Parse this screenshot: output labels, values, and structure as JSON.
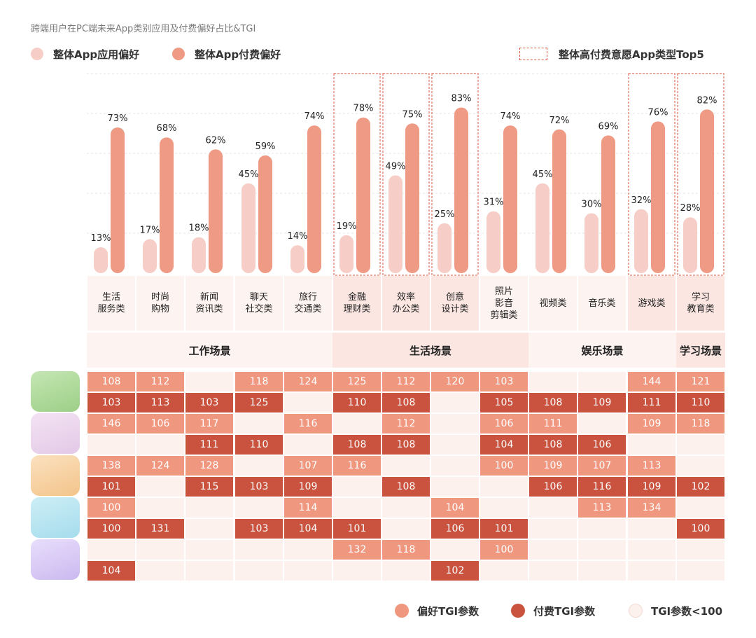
{
  "title": "跨端用户在PC端未来App类别应用及付费偏好占比&TGI",
  "legend": {
    "preference": "整体App应用偏好",
    "payment": "整体App付费偏好",
    "top5": "整体高付费意愿App类型Top5"
  },
  "bottom_legend": {
    "pref_tgi": "偏好TGI参数",
    "pay_tgi": "付费TGI参数",
    "low_tgi": "TGI参数<100"
  },
  "colors": {
    "pref_bar": "#f6cec7",
    "pay_bar": "#ef9a84",
    "pref_tgi": "#f0987f",
    "pay_tgi": "#c9533e",
    "low_tgi": "#fdf1ee",
    "highlight_border": "#d9543f"
  },
  "categories": [
    {
      "label": "生活\n服务类",
      "top5": false
    },
    {
      "label": "时尚\n购物",
      "top5": false
    },
    {
      "label": "新闻\n资讯类",
      "top5": false
    },
    {
      "label": "聊天\n社交类",
      "top5": false
    },
    {
      "label": "旅行\n交通类",
      "top5": false
    },
    {
      "label": "金融\n理财类",
      "top5": true
    },
    {
      "label": "效率\n办公类",
      "top5": true
    },
    {
      "label": "创意\n设计类",
      "top5": true
    },
    {
      "label": "照片\n影音\n剪辑类",
      "top5": false
    },
    {
      "label": "视频类",
      "top5": false
    },
    {
      "label": "音乐类",
      "top5": false
    },
    {
      "label": "游戏类",
      "top5": true
    },
    {
      "label": "学习\n教育类",
      "top5": true
    }
  ],
  "scenes": [
    {
      "label": "工作场景",
      "span": [
        0,
        5
      ]
    },
    {
      "label": "生活场景",
      "span": [
        5,
        8
      ]
    },
    {
      "label": "娱乐场景",
      "span": [
        8,
        12
      ]
    },
    {
      "label": "学习场景",
      "span": [
        12,
        13
      ]
    }
  ],
  "chart_data": {
    "type": "bar",
    "title": "跨端用户在PC端未来App类别应用及付费偏好占比&TGI",
    "categories": [
      "生活服务类",
      "时尚购物",
      "新闻资讯类",
      "聊天社交类",
      "旅行交通类",
      "金融理财类",
      "效率办公类",
      "创意设计类",
      "照片影音剪辑类",
      "视频类",
      "音乐类",
      "游戏类",
      "学习教育类"
    ],
    "series": [
      {
        "name": "整体App应用偏好",
        "values": [
          13,
          17,
          18,
          45,
          14,
          19,
          49,
          25,
          31,
          45,
          30,
          32,
          28
        ],
        "labels": [
          "13%",
          "17%",
          "18%",
          "45%",
          "14%",
          "19%",
          "49%",
          "25%",
          "31%",
          "45%",
          "30%",
          "32%",
          "28%"
        ]
      },
      {
        "name": "整体App付费偏好",
        "values": [
          73,
          68,
          62,
          59,
          74,
          78,
          75,
          83,
          74,
          72,
          69,
          76,
          82
        ],
        "labels": [
          "73%",
          "68%",
          "62%",
          "59%",
          "74%",
          "78%",
          "75%",
          "83%",
          "74%",
          "72%",
          "69%",
          "76%",
          "82%"
        ]
      }
    ],
    "ylim": [
      0,
      100
    ],
    "unit": "%",
    "tgi_groups": [
      {
        "pref": [
          108,
          112,
          null,
          118,
          124,
          125,
          112,
          120,
          103,
          null,
          null,
          144,
          121
        ],
        "pay": [
          103,
          113,
          103,
          125,
          null,
          110,
          108,
          null,
          105,
          108,
          109,
          111,
          110
        ]
      },
      {
        "pref": [
          146,
          106,
          117,
          null,
          116,
          null,
          112,
          null,
          106,
          111,
          null,
          109,
          118
        ],
        "pay": [
          null,
          null,
          111,
          110,
          null,
          108,
          108,
          null,
          104,
          108,
          106,
          null,
          null
        ]
      },
      {
        "pref": [
          138,
          124,
          128,
          null,
          107,
          116,
          null,
          null,
          100,
          109,
          107,
          113,
          null
        ],
        "pay": [
          101,
          null,
          115,
          103,
          109,
          null,
          108,
          null,
          null,
          106,
          116,
          109,
          102
        ]
      },
      {
        "pref": [
          100,
          null,
          null,
          null,
          114,
          null,
          null,
          104,
          null,
          null,
          113,
          134,
          null
        ],
        "pay": [
          100,
          131,
          null,
          103,
          104,
          101,
          null,
          106,
          101,
          null,
          null,
          null,
          100
        ]
      },
      {
        "pref": [
          null,
          null,
          null,
          null,
          null,
          132,
          118,
          null,
          100,
          null,
          null,
          null,
          null
        ],
        "pay": [
          104,
          null,
          null,
          null,
          null,
          null,
          null,
          102,
          null,
          null,
          null,
          null,
          null
        ]
      }
    ]
  }
}
